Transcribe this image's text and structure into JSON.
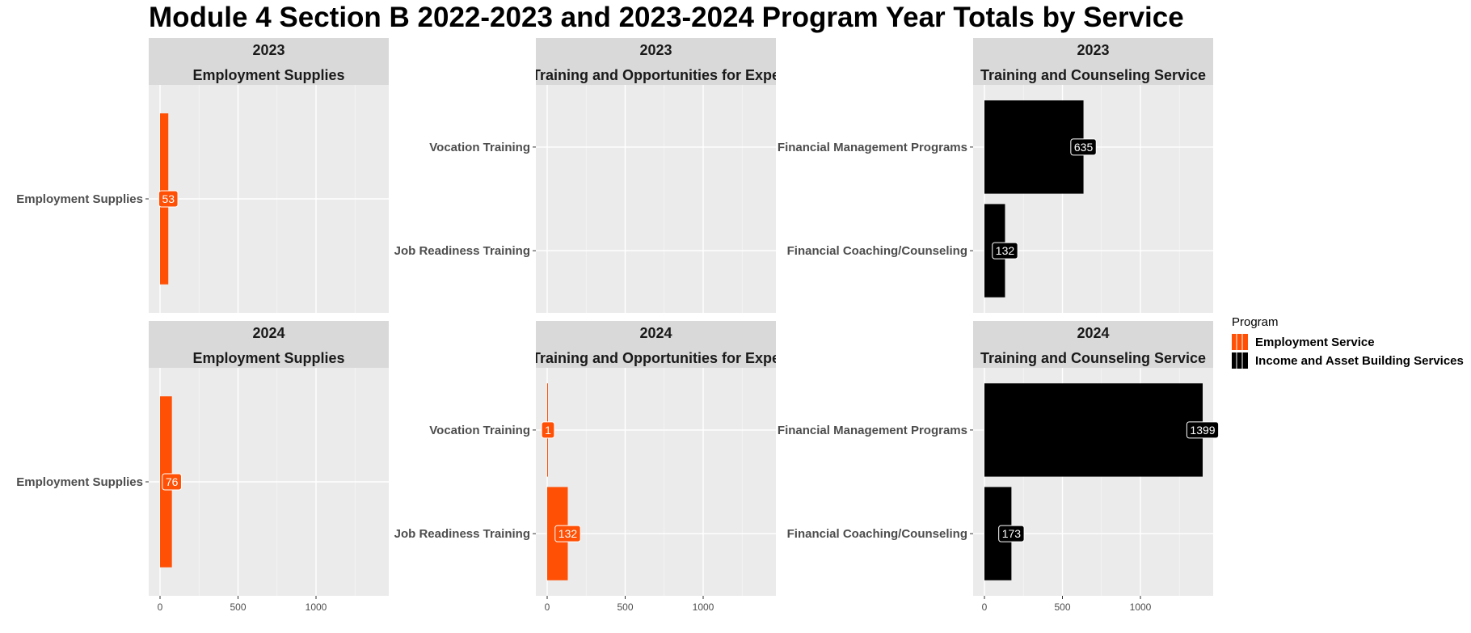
{
  "chart_data": {
    "type": "bar",
    "orientation": "horizontal",
    "title": "Module 4 Section B 2022-2023 and 2023-2024 Program Year Totals by Service",
    "xlim": [
      0,
      1400
    ],
    "x_ticks": [
      0,
      500,
      1000
    ],
    "grid": true,
    "legend": {
      "title": "Program",
      "position": "right",
      "items": [
        {
          "label": "Employment Service",
          "color": "#ff5005"
        },
        {
          "label": "Income and Asset Building Services",
          "color": "#000000"
        }
      ]
    },
    "panels": [
      {
        "year": "2023",
        "service": "Employment Supplies",
        "program": "Employment Service",
        "categories": [
          "Employment Supplies"
        ],
        "values": [
          53
        ]
      },
      {
        "year": "2023",
        "service": "Training and Opportunities for Expe",
        "program": "Employment Service",
        "categories": [
          "Vocation Training",
          "Job Readiness Training"
        ],
        "values": [
          null,
          null
        ]
      },
      {
        "year": "2023",
        "service": "Training and Counseling Service",
        "program": "Income and Asset Building Services",
        "categories": [
          "Financial Management Programs",
          "Financial Coaching/Counseling"
        ],
        "values": [
          635,
          132
        ]
      },
      {
        "year": "2024",
        "service": "Employment Supplies",
        "program": "Employment Service",
        "categories": [
          "Employment Supplies"
        ],
        "values": [
          76
        ]
      },
      {
        "year": "2024",
        "service": "Training and Opportunities for Expe",
        "program": "Employment Service",
        "categories": [
          "Vocation Training",
          "Job Readiness Training"
        ],
        "values": [
          1,
          132
        ]
      },
      {
        "year": "2024",
        "service": "Training and Counseling Service",
        "program": "Income and Asset Building Services",
        "categories": [
          "Financial Management Programs",
          "Financial Coaching/Counseling"
        ],
        "values": [
          1399,
          173
        ]
      }
    ]
  }
}
